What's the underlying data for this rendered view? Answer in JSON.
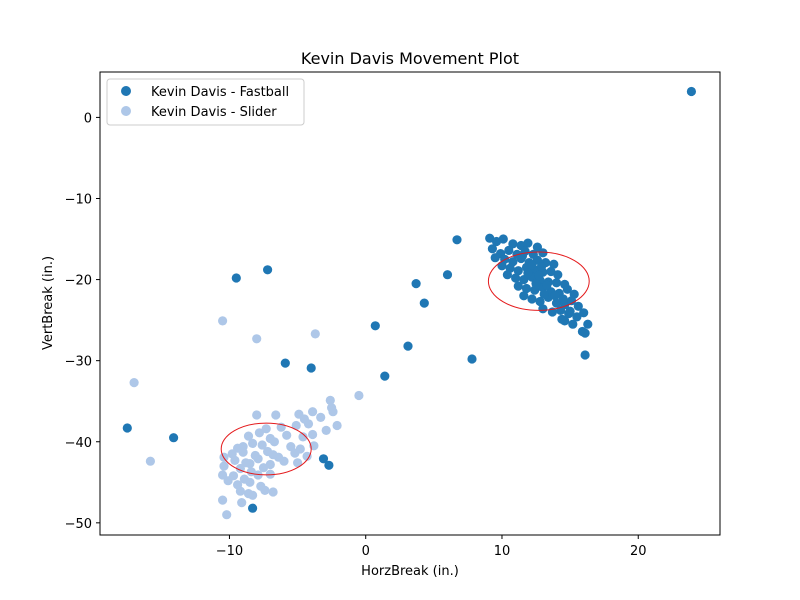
{
  "chart_data": {
    "type": "scatter",
    "title": "Kevin Davis Movement Plot",
    "xlabel": "HorzBreak (in.)",
    "ylabel": "VertBreak (in.)",
    "xlim": [
      -19.5,
      26
    ],
    "ylim": [
      -51.5,
      5.6
    ],
    "xticks": [
      -10,
      0,
      10,
      20
    ],
    "yticks": [
      0,
      -10,
      -20,
      -30,
      -40,
      -50
    ],
    "xtick_labels": [
      "−10",
      "0",
      "10",
      "20"
    ],
    "ytick_labels": [
      "0",
      "−10",
      "−20",
      "−30",
      "−40",
      "−50"
    ],
    "grid": false,
    "legend_position": "upper-left",
    "series": [
      {
        "name": "Kevin Davis - Fastball",
        "color": "#1f77b4",
        "points": [
          [
            23.9,
            3.2
          ],
          [
            -9.5,
            -19.8
          ],
          [
            -7.2,
            -18.8
          ],
          [
            6.7,
            -15.1
          ],
          [
            3.7,
            -20.5
          ],
          [
            6.0,
            -19.4
          ],
          [
            4.3,
            -22.9
          ],
          [
            0.7,
            -25.7
          ],
          [
            3.1,
            -28.2
          ],
          [
            7.8,
            -29.8
          ],
          [
            -5.9,
            -30.3
          ],
          [
            -4.0,
            -30.9
          ],
          [
            1.4,
            -31.9
          ],
          [
            -17.5,
            -38.3
          ],
          [
            -14.1,
            -39.5
          ],
          [
            -3.1,
            -42.1
          ],
          [
            -2.7,
            -42.9
          ],
          [
            -8.3,
            -48.2
          ],
          [
            9.1,
            -14.9
          ],
          [
            9.6,
            -15.3
          ],
          [
            10.1,
            -15.0
          ],
          [
            10.8,
            -15.6
          ],
          [
            11.4,
            -15.8
          ],
          [
            11.9,
            -15.5
          ],
          [
            12.6,
            -16.0
          ],
          [
            9.3,
            -16.2
          ],
          [
            9.9,
            -16.8
          ],
          [
            10.5,
            -16.4
          ],
          [
            11.1,
            -16.9
          ],
          [
            11.7,
            -16.5
          ],
          [
            12.3,
            -16.9
          ],
          [
            13.0,
            -16.7
          ],
          [
            9.5,
            -17.3
          ],
          [
            10.2,
            -17.5
          ],
          [
            10.8,
            -17.8
          ],
          [
            11.4,
            -17.4
          ],
          [
            12.0,
            -17.9
          ],
          [
            12.6,
            -17.6
          ],
          [
            13.2,
            -17.9
          ],
          [
            13.8,
            -18.1
          ],
          [
            10.0,
            -18.3
          ],
          [
            10.6,
            -18.6
          ],
          [
            11.2,
            -18.9
          ],
          [
            11.8,
            -18.5
          ],
          [
            12.4,
            -18.8
          ],
          [
            13.0,
            -19.1
          ],
          [
            13.6,
            -19.0
          ],
          [
            14.1,
            -19.4
          ],
          [
            10.4,
            -19.4
          ],
          [
            11.0,
            -19.8
          ],
          [
            11.6,
            -20.0
          ],
          [
            12.2,
            -19.7
          ],
          [
            12.8,
            -20.1
          ],
          [
            13.4,
            -20.3
          ],
          [
            14.0,
            -20.4
          ],
          [
            14.6,
            -20.6
          ],
          [
            11.2,
            -20.8
          ],
          [
            11.8,
            -21.1
          ],
          [
            12.4,
            -21.3
          ],
          [
            13.0,
            -21.0
          ],
          [
            13.6,
            -21.5
          ],
          [
            14.2,
            -21.7
          ],
          [
            14.8,
            -21.2
          ],
          [
            15.3,
            -21.8
          ],
          [
            11.6,
            -22.0
          ],
          [
            12.2,
            -22.4
          ],
          [
            12.8,
            -22.7
          ],
          [
            13.4,
            -22.2
          ],
          [
            14.0,
            -22.9
          ],
          [
            14.6,
            -23.1
          ],
          [
            15.1,
            -22.6
          ],
          [
            15.6,
            -23.3
          ],
          [
            13.0,
            -23.6
          ],
          [
            13.7,
            -24.0
          ],
          [
            14.3,
            -23.8
          ],
          [
            14.9,
            -24.2
          ],
          [
            15.5,
            -24.6
          ],
          [
            16.0,
            -24.1
          ],
          [
            14.6,
            -25.1
          ],
          [
            15.2,
            -25.5
          ],
          [
            16.3,
            -25.5
          ],
          [
            15.9,
            -26.4
          ],
          [
            16.1,
            -26.6
          ],
          [
            16.1,
            -29.3
          ],
          [
            11.5,
            -17.1
          ],
          [
            12.2,
            -18.2
          ],
          [
            12.9,
            -18.4
          ],
          [
            13.3,
            -20.7
          ],
          [
            12.5,
            -20.5
          ],
          [
            13.9,
            -22.0
          ],
          [
            14.5,
            -22.4
          ],
          [
            15.0,
            -23.9
          ],
          [
            12.7,
            -19.5
          ],
          [
            11.9,
            -19.2
          ],
          [
            13.1,
            -21.8
          ],
          [
            14.4,
            -24.9
          ]
        ]
      },
      {
        "name": "Kevin Davis - Slider",
        "color": "#aec7e8",
        "points": [
          [
            -10.5,
            -25.1
          ],
          [
            -8.0,
            -27.3
          ],
          [
            -3.7,
            -26.7
          ],
          [
            -17.0,
            -32.7
          ],
          [
            -15.8,
            -42.4
          ],
          [
            -0.5,
            -34.3
          ],
          [
            -2.6,
            -34.9
          ],
          [
            -2.5,
            -35.8
          ],
          [
            -2.4,
            -36.3
          ],
          [
            -8.0,
            -36.7
          ],
          [
            -6.6,
            -36.7
          ],
          [
            -4.9,
            -36.6
          ],
          [
            -3.9,
            -36.3
          ],
          [
            -4.5,
            -37.2
          ],
          [
            -5.1,
            -38.0
          ],
          [
            -4.2,
            -37.8
          ],
          [
            -3.3,
            -37.0
          ],
          [
            -2.1,
            -38.0
          ],
          [
            -2.9,
            -38.6
          ],
          [
            -7.3,
            -38.4
          ],
          [
            -6.2,
            -38.2
          ],
          [
            -7.8,
            -38.9
          ],
          [
            -8.6,
            -39.3
          ],
          [
            -7.0,
            -39.6
          ],
          [
            -5.8,
            -39.2
          ],
          [
            -4.6,
            -39.4
          ],
          [
            -3.9,
            -39.1
          ],
          [
            -9.4,
            -40.8
          ],
          [
            -8.3,
            -40.2
          ],
          [
            -7.6,
            -40.4
          ],
          [
            -6.7,
            -40.0
          ],
          [
            -5.5,
            -40.6
          ],
          [
            -4.8,
            -40.9
          ],
          [
            -3.8,
            -40.5
          ],
          [
            -9.8,
            -41.5
          ],
          [
            -9.0,
            -41.3
          ],
          [
            -8.1,
            -41.7
          ],
          [
            -7.2,
            -41.2
          ],
          [
            -6.4,
            -41.9
          ],
          [
            -5.2,
            -41.4
          ],
          [
            -4.3,
            -41.8
          ],
          [
            -10.4,
            -41.9
          ],
          [
            -9.6,
            -42.3
          ],
          [
            -8.8,
            -42.6
          ],
          [
            -7.9,
            -42.1
          ],
          [
            -7.0,
            -42.8
          ],
          [
            -6.0,
            -42.4
          ],
          [
            -5.0,
            -42.6
          ],
          [
            -9.2,
            -43.3
          ],
          [
            -8.4,
            -43.7
          ],
          [
            -7.5,
            -43.2
          ],
          [
            -10.4,
            -43.0
          ],
          [
            -9.7,
            -44.2
          ],
          [
            -8.9,
            -44.6
          ],
          [
            -7.9,
            -44.1
          ],
          [
            -7.0,
            -44.0
          ],
          [
            -10.5,
            -44.1
          ],
          [
            -9.4,
            -45.3
          ],
          [
            -8.5,
            -45.0
          ],
          [
            -7.7,
            -45.5
          ],
          [
            -10.1,
            -44.8
          ],
          [
            -9.2,
            -46.1
          ],
          [
            -8.3,
            -46.6
          ],
          [
            -7.4,
            -46.0
          ],
          [
            -6.8,
            -46.2
          ],
          [
            -8.6,
            -46.4
          ],
          [
            -10.5,
            -47.2
          ],
          [
            -9.1,
            -47.5
          ],
          [
            -10.2,
            -49.0
          ],
          [
            -8.5,
            -42.7
          ],
          [
            -6.8,
            -41.6
          ],
          [
            -9.0,
            -40.6
          ]
        ]
      }
    ],
    "ellipses": [
      {
        "cx": -7.3,
        "cy": -40.9,
        "rx": 3.3,
        "ry": 3.2,
        "color": "#e41a1c"
      },
      {
        "cx": 12.7,
        "cy": -20.2,
        "rx": 3.7,
        "ry": 3.6,
        "color": "#e41a1c"
      }
    ]
  }
}
